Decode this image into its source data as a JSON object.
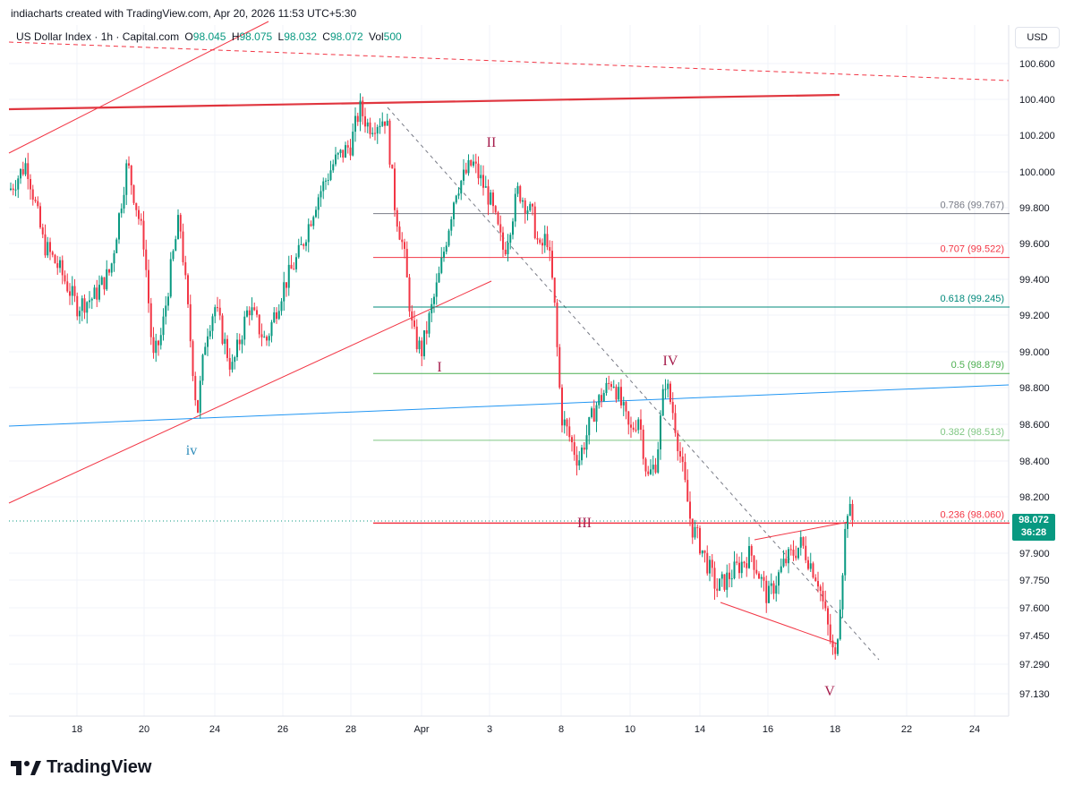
{
  "header": {
    "attribution": "indiacharts created with TradingView.com, Apr 20, 2026 11:53 UTC+5:30"
  },
  "symbol": {
    "name": "US Dollar Index · 1h · Capital.com",
    "open_key": "O",
    "open": "98.045",
    "high_key": "H",
    "high": "98.075",
    "low_key": "L",
    "low": "98.032",
    "close_key": "C",
    "close": "98.072",
    "vol_key": "Vol",
    "vol": "500"
  },
  "currency": "USD",
  "last_price": {
    "price": "98.072",
    "countdown": "36:28"
  },
  "logo": {
    "text": "TradingView",
    "icon": "tradingview-logo-icon"
  },
  "colors": {
    "up": "#089981",
    "down": "#f23645",
    "wave_label": "#a61e4d",
    "wave_label_blue": "#2962ff",
    "grid": "#f0f3fa"
  },
  "chart_data": {
    "type": "candlestick",
    "y_axis": {
      "ticks": [
        "100.600",
        "100.400",
        "100.200",
        "100.000",
        "99.800",
        "99.600",
        "99.400",
        "99.200",
        "99.000",
        "98.800",
        "98.600",
        "98.400",
        "98.200",
        "97.900",
        "97.750",
        "97.600",
        "97.450",
        "97.290",
        "97.130"
      ]
    },
    "x_axis": {
      "ticks": [
        "18",
        "20",
        "24",
        "26",
        "28",
        "Apr",
        "3",
        "8",
        "10",
        "14",
        "16",
        "18",
        "22",
        "24"
      ]
    },
    "fib_levels": [
      {
        "label": "0.786 (99.767)",
        "value": 99.767
      },
      {
        "label": "0.707 (99.522)",
        "value": 99.522
      },
      {
        "label": "0.618 (99.245)",
        "value": 99.245
      },
      {
        "label": "0.5 (98.879)",
        "value": 98.879
      },
      {
        "label": "0.382 (98.513)",
        "value": 98.513
      },
      {
        "label": "0.236 (98.060)",
        "value": 98.06
      }
    ],
    "wave_labels": [
      "iv",
      "I",
      "II",
      "III",
      "IV",
      "V"
    ],
    "price_path": [
      [
        "Mar 16",
        99.9
      ],
      [
        "Mar 16",
        100.05
      ],
      [
        "Mar 17",
        99.6
      ],
      [
        "Mar 17",
        99.45
      ],
      [
        "Mar 18",
        99.25
      ],
      [
        "Mar 18",
        99.3
      ],
      [
        "Mar 19",
        99.45
      ],
      [
        "Mar 19",
        100.05
      ],
      [
        "Mar 20",
        99.6
      ],
      [
        "Mar 20",
        98.95
      ],
      [
        "Mar 21",
        99.1
      ],
      [
        "Mar 21",
        99.45
      ],
      [
        "Mar 22",
        99.75
      ],
      [
        "Mar 23",
        98.65
      ],
      [
        "Mar 23",
        99.1
      ],
      [
        "Mar 24",
        99.25
      ],
      [
        "Mar 24",
        98.9
      ],
      [
        "Mar 25",
        99.25
      ],
      [
        "Mar 25",
        99.05
      ],
      [
        "Mar 26",
        99.35
      ],
      [
        "Mar 26",
        99.55
      ],
      [
        "Mar 27",
        99.85
      ],
      [
        "Mar 27",
        100.05
      ],
      [
        "Mar 28",
        100.15
      ],
      [
        "Mar 28",
        100.35
      ],
      [
        "Mar 29",
        100.25
      ],
      [
        "Mar 30",
        100.3
      ],
      [
        "Mar 30",
        99.8
      ],
      [
        "Mar 31",
        99.55
      ],
      [
        "Mar 31",
        99.1
      ],
      [
        "Apr 1",
        99.0
      ],
      [
        "Apr 1",
        99.4
      ],
      [
        "Apr 2",
        99.9
      ],
      [
        "Apr 2",
        100.05
      ],
      [
        "Apr 3",
        99.85
      ],
      [
        "Apr 4",
        99.55
      ],
      [
        "Apr 5",
        99.9
      ],
      [
        "Apr 6",
        99.75
      ],
      [
        "Apr 6",
        99.55
      ],
      [
        "Apr 7",
        99.65
      ],
      [
        "Apr 7",
        99.3
      ],
      [
        "Apr 8",
        98.65
      ],
      [
        "Apr 8",
        98.4
      ],
      [
        "Apr 9",
        98.7
      ],
      [
        "Apr 9",
        98.85
      ],
      [
        "Apr 10",
        98.55
      ],
      [
        "Apr 10",
        98.65
      ],
      [
        "Apr 11",
        98.3
      ],
      [
        "Apr 11",
        98.4
      ],
      [
        "Apr 12",
        98.85
      ],
      [
        "Apr 12",
        98.65
      ],
      [
        "Apr 13",
        98.35
      ],
      [
        "Apr 13",
        98.05
      ],
      [
        "Apr 14",
        97.95
      ],
      [
        "Apr 14",
        97.7
      ],
      [
        "Apr 15",
        97.8
      ],
      [
        "Apr 15",
        97.9
      ],
      [
        "Apr 16",
        97.65
      ],
      [
        "Apr 16",
        97.85
      ],
      [
        "Apr 17",
        97.95
      ],
      [
        "Apr 17",
        97.75
      ],
      [
        "Apr 18",
        97.3
      ],
      [
        "Apr 18",
        97.7
      ],
      [
        "Apr 18",
        98.15
      ],
      [
        "Apr 19",
        98.072
      ]
    ]
  }
}
